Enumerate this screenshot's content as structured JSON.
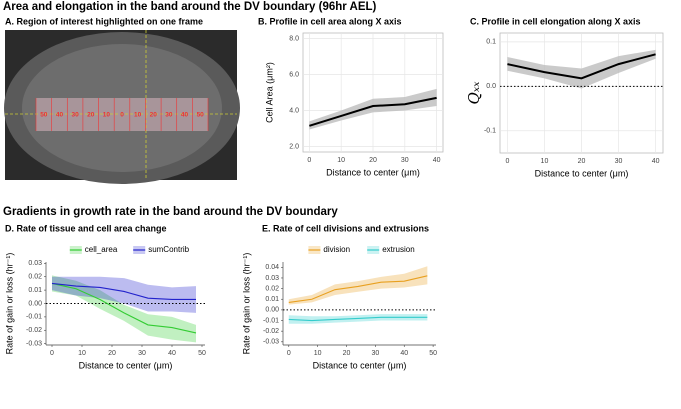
{
  "headers": [
    "Area and elongation in the band around the DV boundary (96hr AEL)",
    "Gradients in growth rate in the band around the DV boundary"
  ],
  "panel_a": {
    "title": "A. Region of interest highlighted on one frame",
    "band_labels": [
      50,
      40,
      30,
      20,
      10,
      0,
      10,
      20,
      30,
      40,
      50
    ]
  },
  "chart_data": [
    {
      "type": "line",
      "title": "B. Profile in cell area along X axis",
      "x_label": "Distance to center (μm)",
      "y_label": "Cell Area (μm²)",
      "x": [
        0,
        10,
        20,
        30,
        40
      ],
      "values": [
        3.15,
        3.7,
        4.25,
        4.35,
        4.7
      ],
      "lower": [
        2.95,
        3.45,
        3.9,
        4.0,
        4.25
      ],
      "upper": [
        3.4,
        4.0,
        4.65,
        4.75,
        5.2
      ],
      "color": "#000000",
      "band_color": "#bdbdbd",
      "xlim": [
        -2,
        42
      ],
      "xticks": [
        0,
        10,
        20,
        30,
        40
      ],
      "ylim": [
        1.7,
        8.3
      ],
      "yticks": [
        {
          "value": 2,
          "label": "2.0"
        },
        {
          "value": 4,
          "label": "4.0"
        },
        {
          "value": 6,
          "label": "6.0"
        },
        {
          "value": 8,
          "label": "8.0"
        }
      ],
      "grid": true
    },
    {
      "type": "line",
      "title": "C. Profile in cell elongation along X axis",
      "x_label": "Distance to center (μm)",
      "y_label": "Qₓₓ",
      "x": [
        0,
        10,
        20,
        30,
        40
      ],
      "values": [
        0.05,
        0.032,
        0.018,
        0.05,
        0.072
      ],
      "lower": [
        0.035,
        0.018,
        -0.005,
        0.03,
        0.062
      ],
      "upper": [
        0.066,
        0.048,
        0.04,
        0.068,
        0.082
      ],
      "color": "#000000",
      "band_color": "#bdbdbd",
      "xlim": [
        -2,
        42
      ],
      "xticks": [
        0,
        10,
        20,
        30,
        40
      ],
      "ylim": [
        -0.15,
        0.12
      ],
      "yticks": [
        {
          "value": -0.1,
          "label": "-0.1"
        },
        {
          "value": 0,
          "label": "0.0"
        },
        {
          "value": 0.1,
          "label": "0.1"
        }
      ],
      "grid": true,
      "hline": 0
    },
    {
      "type": "line",
      "title": "D. Rate of tissue and cell area change",
      "x_label": "Distance to center (μm)",
      "y_label": "Rate of gain or loss (hr⁻¹)",
      "x": [
        0,
        8,
        16,
        24,
        32,
        40,
        48
      ],
      "series": [
        {
          "name": "cell_area",
          "color": "#33cc33",
          "values": [
            0.015,
            0.011,
            0.003,
            -0.007,
            -0.016,
            -0.018,
            -0.022
          ],
          "lower": [
            0.009,
            0.006,
            -0.004,
            -0.013,
            -0.024,
            -0.027,
            -0.029
          ],
          "upper": [
            0.021,
            0.017,
            0.01,
            -0.001,
            -0.008,
            -0.01,
            -0.016
          ]
        },
        {
          "name": "sumContrib",
          "color": "#2222cc",
          "values": [
            0.015,
            0.013,
            0.012,
            0.009,
            0.004,
            0.003,
            0.003
          ],
          "lower": [
            0.01,
            0.006,
            0.004,
            0,
            -0.006,
            -0.006,
            -0.007
          ],
          "upper": [
            0.02,
            0.02,
            0.02,
            0.019,
            0.014,
            0.012,
            0.013
          ]
        }
      ],
      "xlim": [
        -2,
        51
      ],
      "xticks": [
        0,
        10,
        20,
        30,
        40,
        50
      ],
      "ylim": [
        -0.031,
        0.031
      ],
      "yticks": [
        {
          "value": -0.03,
          "label": "-0.03"
        },
        {
          "value": -0.02,
          "label": "-0.02"
        },
        {
          "value": -0.01,
          "label": "-0.01"
        },
        {
          "value": 0,
          "label": "0.00"
        },
        {
          "value": 0.01,
          "label": "0.01"
        },
        {
          "value": 0.02,
          "label": "0.02"
        },
        {
          "value": 0.03,
          "label": "0.03"
        }
      ],
      "grid": false,
      "hline": 0,
      "legend": "top"
    },
    {
      "type": "line",
      "title": "E. Rate of cell divisions and extrusions",
      "x_label": "Distance to center (μm)",
      "y_label": "Rate of gain or loss (hr⁻¹)",
      "x": [
        0,
        8,
        16,
        24,
        32,
        40,
        48
      ],
      "series": [
        {
          "name": "division",
          "color": "#e8a020",
          "values": [
            0.007,
            0.01,
            0.019,
            0.022,
            0.026,
            0.027,
            0.032
          ],
          "lower": [
            0.005,
            0.007,
            0.014,
            0.017,
            0.02,
            0.021,
            0.024
          ],
          "upper": [
            0.01,
            0.014,
            0.024,
            0.027,
            0.031,
            0.034,
            0.041
          ]
        },
        {
          "name": "extrusion",
          "color": "#33cccc",
          "values": [
            -0.009,
            -0.01,
            -0.009,
            -0.008,
            -0.007,
            -0.007,
            -0.007
          ],
          "lower": [
            -0.013,
            -0.013,
            -0.012,
            -0.011,
            -0.01,
            -0.01,
            -0.01
          ],
          "upper": [
            -0.005,
            -0.006,
            -0.006,
            -0.005,
            -0.004,
            -0.004,
            -0.004
          ]
        }
      ],
      "xlim": [
        -2,
        51
      ],
      "xticks": [
        0,
        10,
        20,
        30,
        40,
        50
      ],
      "ylim": [
        -0.033,
        0.045
      ],
      "yticks": [
        {
          "value": -0.03,
          "label": "-0.03"
        },
        {
          "value": -0.02,
          "label": "-0.02"
        },
        {
          "value": -0.01,
          "label": "-0.01"
        },
        {
          "value": 0,
          "label": "0.00"
        },
        {
          "value": 0.01,
          "label": "0.01"
        },
        {
          "value": 0.02,
          "label": "0.02"
        },
        {
          "value": 0.03,
          "label": "0.03"
        },
        {
          "value": 0.04,
          "label": "0.04"
        }
      ],
      "grid": false,
      "hline": 0,
      "legend": "top"
    }
  ]
}
